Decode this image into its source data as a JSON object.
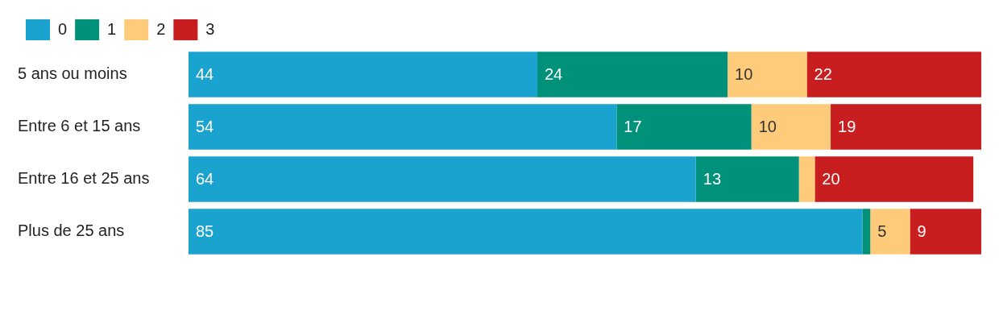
{
  "chart_data": {
    "type": "bar",
    "orientation": "horizontal",
    "stacked": true,
    "legend": "top left",
    "tick_labels": "y",
    "xlim": [
      0,
      100
    ],
    "categories": [
      "5 ans ou moins",
      "Entre 6 et 15 ans",
      "Entre 16 et 25 ans",
      "Plus de 25 ans"
    ],
    "series": [
      {
        "name": "0",
        "color": "#1ba3cf",
        "values": [
          44,
          54,
          64,
          85
        ],
        "value_labels": [
          "44",
          "54",
          "64",
          "85"
        ]
      },
      {
        "name": "1",
        "color": "#00917a",
        "values": [
          24,
          17,
          13,
          1
        ],
        "value_labels": [
          "24",
          "17",
          "13",
          null
        ]
      },
      {
        "name": "2",
        "color": "#fecb7a",
        "values": [
          10,
          10,
          2,
          5
        ],
        "value_labels": [
          "10",
          "10",
          null,
          "5"
        ]
      },
      {
        "name": "3",
        "color": "#c91e1f",
        "values": [
          22,
          19,
          20,
          9
        ],
        "value_labels": [
          "22",
          "19",
          "20",
          "9"
        ]
      }
    ]
  }
}
